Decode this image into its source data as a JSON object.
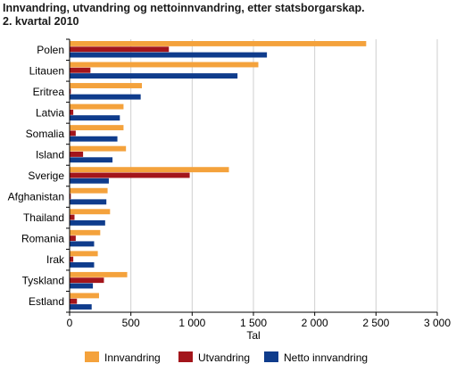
{
  "header": {
    "title_line1": "Innvandring, utvandring og nettoinnvandring, etter statsborgarskap.",
    "title_line2": "2. kvartal 2010"
  },
  "chart_data": {
    "type": "bar",
    "orientation": "horizontal",
    "categories": [
      "Polen",
      "Litauen",
      "Eritrea",
      "Latvia",
      "Somalia",
      "Island",
      "Sverige",
      "Afghanistan",
      "Thailand",
      "Romania",
      "Irak",
      "Tyskland",
      "Estland"
    ],
    "series": [
      {
        "name": "Innvandring",
        "color": "#f4a23c",
        "values": [
          2420,
          1540,
          590,
          440,
          440,
          460,
          1300,
          310,
          330,
          250,
          230,
          470,
          240
        ]
      },
      {
        "name": "Utvandring",
        "color": "#a3151b",
        "values": [
          810,
          170,
          10,
          30,
          50,
          110,
          980,
          10,
          40,
          50,
          30,
          280,
          60
        ]
      },
      {
        "name": "Netto innvandring",
        "color": "#0f3c8c",
        "values": [
          1610,
          1370,
          580,
          410,
          390,
          350,
          320,
          300,
          290,
          200,
          200,
          190,
          180
        ]
      }
    ],
    "xlabel": "Tal",
    "ylabel": "",
    "xlim": [
      0,
      3000
    ],
    "xticks": [
      0,
      500,
      1000,
      1500,
      2000,
      2500,
      3000
    ],
    "xtick_labels": [
      "0",
      "500",
      "1 000",
      "1 500",
      "2 000",
      "2 500",
      "3 000"
    ],
    "grid": true,
    "legend_position": "bottom"
  }
}
